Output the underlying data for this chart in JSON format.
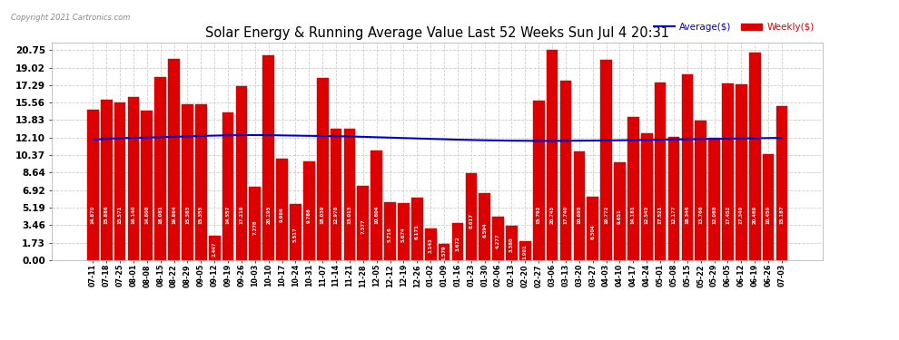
{
  "title": "Solar Energy & Running Average Value Last 52 Weeks Sun Jul 4 20:31",
  "copyright": "Copyright 2021 Cartronics.com",
  "legend_avg": "Average($)",
  "legend_weekly": "Weekly($)",
  "yticks": [
    0.0,
    1.73,
    3.46,
    5.19,
    6.92,
    8.64,
    10.37,
    12.1,
    13.83,
    15.56,
    17.29,
    19.02,
    20.75
  ],
  "bar_color": "#dd0000",
  "avg_line_color": "#0000cc",
  "background_color": "#ffffff",
  "grid_color": "#cccccc",
  "categories": [
    "07-11",
    "07-18",
    "07-25",
    "08-01",
    "08-08",
    "08-15",
    "08-22",
    "08-29",
    "09-05",
    "09-12",
    "09-19",
    "09-26",
    "10-03",
    "10-10",
    "10-17",
    "10-24",
    "10-31",
    "11-07",
    "11-14",
    "11-21",
    "11-28",
    "12-05",
    "12-12",
    "12-19",
    "12-26",
    "01-02",
    "01-09",
    "01-16",
    "01-23",
    "01-30",
    "02-06",
    "02-13",
    "02-20",
    "02-27",
    "03-06",
    "03-13",
    "03-20",
    "03-27",
    "04-03",
    "04-10",
    "04-17",
    "04-24",
    "05-01",
    "05-08",
    "05-15",
    "05-22",
    "05-29",
    "06-05",
    "06-12",
    "06-19",
    "06-26",
    "07-03"
  ],
  "bar_heights": [
    14.87,
    15.886,
    15.571,
    16.14,
    14.808,
    18.081,
    19.864,
    15.383,
    15.355,
    2.447,
    14.557,
    17.218,
    7.278,
    20.195,
    9.986,
    5.517,
    9.786,
    18.039,
    12.978,
    13.013,
    7.377,
    10.804,
    5.716,
    5.674,
    6.171,
    3.143,
    1.579,
    3.672,
    8.617,
    6.594,
    4.277,
    3.38,
    1.901,
    15.792,
    20.745,
    17.74,
    10.695,
    6.304,
    19.772,
    9.651,
    14.181,
    12.543,
    17.521,
    12.177,
    18.346,
    13.766,
    12.088,
    17.452,
    17.349,
    20.469,
    10.459,
    15.187
  ],
  "avg_values": [
    11.9,
    11.98,
    12.05,
    12.08,
    12.1,
    12.15,
    12.18,
    12.22,
    12.27,
    12.3,
    12.33,
    12.35,
    12.35,
    12.35,
    12.32,
    12.3,
    12.28,
    12.26,
    12.24,
    12.22,
    12.18,
    12.14,
    12.1,
    12.06,
    12.02,
    11.98,
    11.94,
    11.9,
    11.87,
    11.84,
    11.82,
    11.8,
    11.79,
    11.78,
    11.78,
    11.79,
    11.8,
    11.81,
    11.82,
    11.84,
    11.86,
    11.88,
    11.9,
    11.92,
    11.94,
    11.96,
    11.98,
    12.0,
    12.02,
    12.04,
    12.06,
    12.08
  ]
}
